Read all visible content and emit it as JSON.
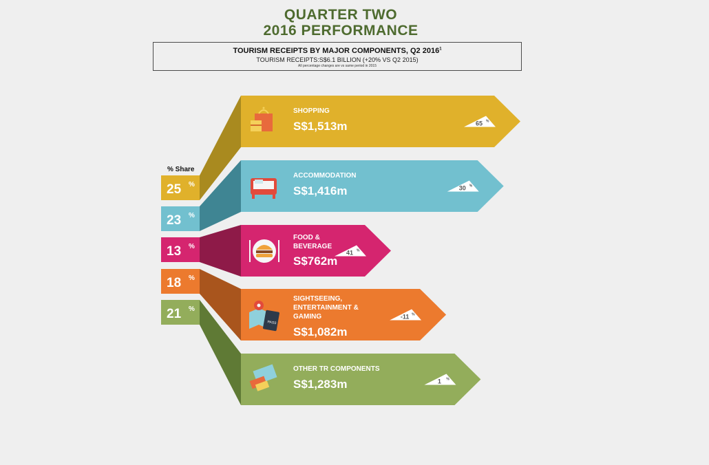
{
  "header": {
    "title_line1": "QUARTER TWO",
    "title_line2": "2016 PERFORMANCE",
    "box_title": "TOURISM RECEIPTS BY MAJOR COMPONENTS, Q2 2016",
    "box_title_sup": "1",
    "box_subtitle": "TOURISM RECEIPTS:S$6.1 BILLION (+20% VS Q2 2015)",
    "box_note": "All percentage changes are vs same period in 2015"
  },
  "chart_data": {
    "type": "bar",
    "share_label": "% Share",
    "categories": [
      [
        "SHOPPING"
      ],
      [
        "ACCOMMODATION"
      ],
      [
        "FOOD &",
        "BEVERAGE"
      ],
      [
        "SIGHTSEEING,",
        "ENTERTAINMENT &",
        "GAMING"
      ],
      [
        "OTHER TR COMPONENTS"
      ]
    ],
    "values": [
      1513,
      1416,
      762,
      1082,
      1283
    ],
    "value_labels": [
      "S$1,513m",
      "S$1,416m",
      "S$762m",
      "S$1,082m",
      "S$1,283m"
    ],
    "unit": "S$m",
    "shares": [
      25,
      23,
      13,
      18,
      21
    ],
    "changes": [
      65,
      30,
      41,
      -11,
      1
    ],
    "colors": [
      "#e0b12b",
      "#72c0cf",
      "#d5256f",
      "#ec7a2e",
      "#93ad5b"
    ],
    "dark_colors": [
      "#a98a1f",
      "#3f8593",
      "#8e1a48",
      "#a9551d",
      "#5f7a35"
    ],
    "icons": [
      "shopping-bag-icon",
      "bed-icon",
      "burger-plate-icon",
      "map-passport-icon",
      "tickets-icon"
    ]
  }
}
